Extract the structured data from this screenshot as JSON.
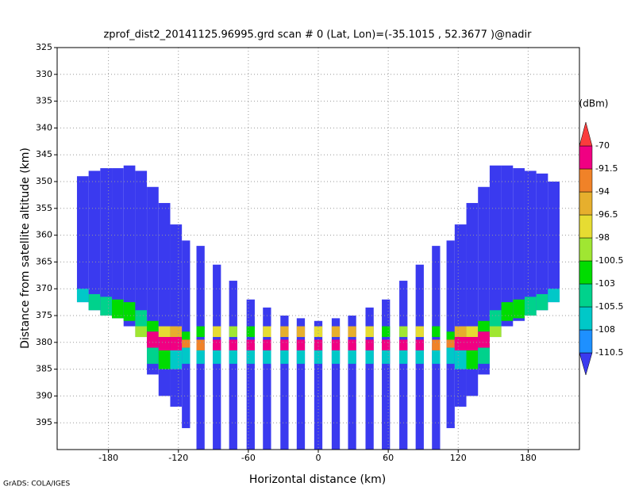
{
  "chart_data": {
    "type": "heatmap",
    "title": "zprof_dist2_20141125.96995.grd  scan # 0  (Lat, Lon)=(-35.1015 , 52.3677 )@nadir",
    "x_label": "Horizontal distance (km)",
    "y_label": "Distance from satellite altitude (km)",
    "footer": "GrADS: COLA/IGES",
    "xlim": [
      -224,
      224
    ],
    "xticks": [
      -180,
      -120,
      -60,
      0,
      60,
      120,
      180
    ],
    "ylim": [
      400,
      325
    ],
    "yticks": [
      325,
      330,
      335,
      340,
      345,
      350,
      355,
      360,
      365,
      370,
      375,
      380,
      385,
      390,
      395
    ],
    "grid": true,
    "colorbar": {
      "unit": "(dBm)",
      "levels": [
        -110.5,
        -108,
        -105.5,
        -103,
        -100.5,
        -98,
        -96.5,
        -94,
        -91.5,
        -70
      ],
      "colors": [
        "#3a3aef",
        "#1e90ff",
        "#00c8c8",
        "#00d28c",
        "#00dc00",
        "#a0e632",
        "#e6dc32",
        "#e6af2d",
        "#f08228",
        "#f00082",
        "#fa3c3c"
      ]
    },
    "columns": [
      {
        "x0": -207,
        "x1": -197,
        "segments": [
          {
            "from": 349,
            "to": 372.5,
            "value": -112
          },
          {
            "from": 370,
            "to": 372.5,
            "value": -107
          }
        ]
      },
      {
        "x0": -197,
        "x1": -187,
        "segments": [
          {
            "from": 348,
            "to": 374,
            "value": -112
          },
          {
            "from": 371,
            "to": 374,
            "value": -105
          }
        ]
      },
      {
        "x0": -187,
        "x1": -177,
        "segments": [
          {
            "from": 347.5,
            "to": 375,
            "value": -112
          },
          {
            "from": 371.5,
            "to": 375,
            "value": -104
          }
        ]
      },
      {
        "x0": -177,
        "x1": -167,
        "segments": [
          {
            "from": 347.5,
            "to": 375.5,
            "value": -112
          },
          {
            "from": 372,
            "to": 375.5,
            "value": -101
          }
        ]
      },
      {
        "x0": -167,
        "x1": -157,
        "segments": [
          {
            "from": 347,
            "to": 377,
            "value": -112
          },
          {
            "from": 372.5,
            "to": 376,
            "value": -101
          }
        ]
      },
      {
        "x0": -157,
        "x1": -147,
        "segments": [
          {
            "from": 348,
            "to": 379,
            "value": -112
          },
          {
            "from": 374,
            "to": 377,
            "value": -104
          },
          {
            "from": 377,
            "to": 379,
            "value": -100
          }
        ]
      },
      {
        "x0": -147,
        "x1": -137,
        "segments": [
          {
            "from": 351,
            "to": 386,
            "value": -112
          },
          {
            "from": 376,
            "to": 378,
            "value": -101
          },
          {
            "from": 378,
            "to": 381,
            "value": -90
          },
          {
            "from": 381,
            "to": 384,
            "value": -105
          }
        ]
      },
      {
        "x0": -137,
        "x1": -127,
        "segments": [
          {
            "from": 354,
            "to": 390,
            "value": -112
          },
          {
            "from": 377,
            "to": 379,
            "value": -97
          },
          {
            "from": 379,
            "to": 381.5,
            "value": -85
          },
          {
            "from": 381.5,
            "to": 385,
            "value": -102
          }
        ]
      },
      {
        "x0": -127,
        "x1": -117,
        "segments": [
          {
            "from": 358,
            "to": 392,
            "value": -112
          },
          {
            "from": 377,
            "to": 379,
            "value": -96
          },
          {
            "from": 379,
            "to": 381.5,
            "value": -88
          },
          {
            "from": 381.5,
            "to": 385,
            "value": -106
          }
        ]
      },
      {
        "x0": -117,
        "x1": -110,
        "segments": [
          {
            "from": 361,
            "to": 396,
            "value": -112
          },
          {
            "from": 378,
            "to": 379.5,
            "value": -101
          },
          {
            "from": 379.5,
            "to": 381,
            "value": -92
          },
          {
            "from": 381,
            "to": 384,
            "value": -107
          }
        ]
      },
      {
        "x0": -104.5,
        "x1": -97.5,
        "segments": [
          {
            "from": 362,
            "to": 400,
            "value": -112
          },
          {
            "from": 377,
            "to": 379,
            "value": -101
          },
          {
            "from": 379.5,
            "to": 381.5,
            "value": -92
          },
          {
            "from": 381.5,
            "to": 384,
            "value": -107
          }
        ]
      },
      {
        "x0": -90.5,
        "x1": -83.5,
        "segments": [
          {
            "from": 365.5,
            "to": 400,
            "value": -112
          },
          {
            "from": 377,
            "to": 379,
            "value": -98
          },
          {
            "from": 379.5,
            "to": 381.5,
            "value": -89
          },
          {
            "from": 381.5,
            "to": 384,
            "value": -107
          }
        ]
      },
      {
        "x0": -76.5,
        "x1": -69.5,
        "segments": [
          {
            "from": 368.5,
            "to": 400,
            "value": -112
          },
          {
            "from": 377,
            "to": 379,
            "value": -100
          },
          {
            "from": 379.5,
            "to": 381.5,
            "value": -88
          },
          {
            "from": 381.5,
            "to": 384,
            "value": -107
          }
        ]
      },
      {
        "x0": -61.5,
        "x1": -54.5,
        "segments": [
          {
            "from": 372,
            "to": 400,
            "value": -112
          },
          {
            "from": 377,
            "to": 379,
            "value": -101
          },
          {
            "from": 379.5,
            "to": 381.5,
            "value": -88
          },
          {
            "from": 381.5,
            "to": 384,
            "value": -107
          }
        ]
      },
      {
        "x0": -47.5,
        "x1": -40.5,
        "segments": [
          {
            "from": 373.5,
            "to": 400,
            "value": -112
          },
          {
            "from": 377,
            "to": 379,
            "value": -97
          },
          {
            "from": 379.5,
            "to": 381.5,
            "value": -90
          },
          {
            "from": 381.5,
            "to": 384,
            "value": -107
          }
        ]
      },
      {
        "x0": -32.5,
        "x1": -25.5,
        "segments": [
          {
            "from": 375,
            "to": 400,
            "value": -112
          },
          {
            "from": 377,
            "to": 379,
            "value": -96
          },
          {
            "from": 379.5,
            "to": 381.5,
            "value": -87
          },
          {
            "from": 381.5,
            "to": 384,
            "value": -107
          }
        ]
      },
      {
        "x0": -18.5,
        "x1": -11.5,
        "segments": [
          {
            "from": 375.5,
            "to": 400,
            "value": -112
          },
          {
            "from": 377,
            "to": 379,
            "value": -95
          },
          {
            "from": 379.5,
            "to": 381.5,
            "value": -90
          },
          {
            "from": 381.5,
            "to": 384,
            "value": -107
          }
        ]
      },
      {
        "x0": -3.5,
        "x1": 3.5,
        "segments": [
          {
            "from": 376,
            "to": 400,
            "value": -112
          },
          {
            "from": 377,
            "to": 379,
            "value": -97
          },
          {
            "from": 379.5,
            "to": 381.5,
            "value": -89
          },
          {
            "from": 381.5,
            "to": 384,
            "value": -107
          }
        ]
      },
      {
        "x0": 11.5,
        "x1": 18.5,
        "segments": [
          {
            "from": 375.5,
            "to": 400,
            "value": -112
          },
          {
            "from": 377,
            "to": 379,
            "value": -95
          },
          {
            "from": 379.5,
            "to": 381.5,
            "value": -90
          },
          {
            "from": 381.5,
            "to": 384,
            "value": -107
          }
        ]
      },
      {
        "x0": 25.5,
        "x1": 32.5,
        "segments": [
          {
            "from": 375,
            "to": 400,
            "value": -112
          },
          {
            "from": 377,
            "to": 379,
            "value": -96
          },
          {
            "from": 379.5,
            "to": 381.5,
            "value": -87
          },
          {
            "from": 381.5,
            "to": 384,
            "value": -107
          }
        ]
      },
      {
        "x0": 40.5,
        "x1": 47.5,
        "segments": [
          {
            "from": 373.5,
            "to": 400,
            "value": -112
          },
          {
            "from": 377,
            "to": 379,
            "value": -97
          },
          {
            "from": 379.5,
            "to": 381.5,
            "value": -90
          },
          {
            "from": 381.5,
            "to": 384,
            "value": -107
          }
        ]
      },
      {
        "x0": 54.5,
        "x1": 61.5,
        "segments": [
          {
            "from": 372,
            "to": 400,
            "value": -112
          },
          {
            "from": 377,
            "to": 379,
            "value": -101
          },
          {
            "from": 379.5,
            "to": 381.5,
            "value": -88
          },
          {
            "from": 381.5,
            "to": 384,
            "value": -107
          }
        ]
      },
      {
        "x0": 69.5,
        "x1": 76.5,
        "segments": [
          {
            "from": 368.5,
            "to": 400,
            "value": -112
          },
          {
            "from": 377,
            "to": 379,
            "value": -100
          },
          {
            "from": 379.5,
            "to": 381.5,
            "value": -88
          },
          {
            "from": 381.5,
            "to": 384,
            "value": -107
          }
        ]
      },
      {
        "x0": 83.5,
        "x1": 90.5,
        "segments": [
          {
            "from": 365.5,
            "to": 400,
            "value": -112
          },
          {
            "from": 377,
            "to": 379,
            "value": -98
          },
          {
            "from": 379.5,
            "to": 381.5,
            "value": -89
          },
          {
            "from": 381.5,
            "to": 384,
            "value": -107
          }
        ]
      },
      {
        "x0": 97.5,
        "x1": 104.5,
        "segments": [
          {
            "from": 362,
            "to": 400,
            "value": -112
          },
          {
            "from": 377,
            "to": 379,
            "value": -101
          },
          {
            "from": 379.5,
            "to": 381.5,
            "value": -92
          },
          {
            "from": 381.5,
            "to": 384,
            "value": -107
          }
        ]
      },
      {
        "x0": 110,
        "x1": 117,
        "segments": [
          {
            "from": 361,
            "to": 396,
            "value": -112
          },
          {
            "from": 378,
            "to": 379.5,
            "value": -101
          },
          {
            "from": 379.5,
            "to": 381,
            "value": -92
          },
          {
            "from": 381,
            "to": 384,
            "value": -107
          }
        ]
      },
      {
        "x0": 117,
        "x1": 127,
        "segments": [
          {
            "from": 358,
            "to": 392,
            "value": -112
          },
          {
            "from": 377,
            "to": 379,
            "value": -96
          },
          {
            "from": 379,
            "to": 381.5,
            "value": -88
          },
          {
            "from": 381.5,
            "to": 385,
            "value": -106
          }
        ]
      },
      {
        "x0": 127,
        "x1": 137,
        "segments": [
          {
            "from": 354,
            "to": 390,
            "value": -112
          },
          {
            "from": 377,
            "to": 379,
            "value": -97
          },
          {
            "from": 379,
            "to": 381.5,
            "value": -85
          },
          {
            "from": 381.5,
            "to": 385,
            "value": -102
          }
        ]
      },
      {
        "x0": 137,
        "x1": 147,
        "segments": [
          {
            "from": 351,
            "to": 386,
            "value": -112
          },
          {
            "from": 376,
            "to": 378,
            "value": -101
          },
          {
            "from": 378,
            "to": 381,
            "value": -90
          },
          {
            "from": 381,
            "to": 384,
            "value": -105
          }
        ]
      },
      {
        "x0": 147,
        "x1": 157,
        "segments": [
          {
            "from": 347,
            "to": 379,
            "value": -112
          },
          {
            "from": 374,
            "to": 377,
            "value": -104
          },
          {
            "from": 377,
            "to": 379,
            "value": -100
          }
        ]
      },
      {
        "x0": 157,
        "x1": 167,
        "segments": [
          {
            "from": 347,
            "to": 377,
            "value": -112
          },
          {
            "from": 372.5,
            "to": 376,
            "value": -101
          }
        ]
      },
      {
        "x0": 167,
        "x1": 177,
        "segments": [
          {
            "from": 347.5,
            "to": 376,
            "value": -112
          },
          {
            "from": 372,
            "to": 375.5,
            "value": -101
          }
        ]
      },
      {
        "x0": 177,
        "x1": 187,
        "segments": [
          {
            "from": 348,
            "to": 375,
            "value": -112
          },
          {
            "from": 371.5,
            "to": 375,
            "value": -104
          }
        ]
      },
      {
        "x0": 187,
        "x1": 197,
        "segments": [
          {
            "from": 348.5,
            "to": 374,
            "value": -112
          },
          {
            "from": 371,
            "to": 374,
            "value": -105
          }
        ]
      },
      {
        "x0": 197,
        "x1": 207,
        "segments": [
          {
            "from": 350,
            "to": 372.5,
            "value": -112
          },
          {
            "from": 370,
            "to": 372.5,
            "value": -107
          }
        ]
      }
    ]
  }
}
